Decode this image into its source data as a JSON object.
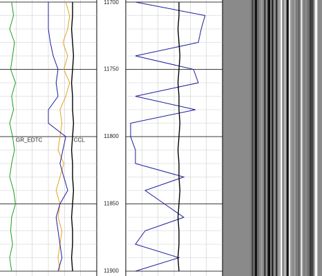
{
  "chart_data": {
    "type": "well-log",
    "ylim": [
      11700,
      11900
    ],
    "yticks": [
      11700,
      11750,
      11800,
      11850,
      11900
    ],
    "xlim": [
      0,
      1
    ],
    "depths": [
      11700,
      11710,
      11720,
      11730,
      11740,
      11750,
      11760,
      11770,
      11780,
      11790,
      11800,
      11810,
      11820,
      11830,
      11840,
      11850,
      11860,
      11870,
      11880,
      11890,
      11900
    ],
    "grid": true,
    "series": [
      {
        "name": "GR_EDTC",
        "color": "#1a9e1a",
        "track": 1,
        "values": [
          0.12,
          0.14,
          0.1,
          0.15,
          0.13,
          0.11,
          0.16,
          0.12,
          0.14,
          0.1,
          0.13,
          0.15,
          0.12,
          0.1,
          0.14,
          0.16,
          0.12,
          0.11,
          0.13,
          0.1,
          0.12
        ]
      },
      {
        "color": "#e6a020",
        "track": 1,
        "values": [
          0.68,
          0.72,
          0.7,
          0.65,
          0.7,
          0.66,
          0.72,
          0.68,
          0.62,
          0.64,
          0.62,
          0.6,
          0.66,
          0.62,
          0.58,
          0.62,
          0.6,
          0.64,
          0.62,
          0.6,
          0.62
        ]
      },
      {
        "color": "#1a1a9e",
        "track": 1,
        "values": [
          0.5,
          0.5,
          0.5,
          0.52,
          0.55,
          0.6,
          0.58,
          0.6,
          0.5,
          0.5,
          0.68,
          0.65,
          0.62,
          0.66,
          0.7,
          0.62,
          0.58,
          0.6,
          0.62,
          0.64,
          0.6
        ]
      },
      {
        "name": "CCL",
        "color": "#000000",
        "track": 1,
        "values": [
          0.75,
          0.75,
          0.74,
          0.75,
          0.76,
          0.75,
          0.74,
          0.75,
          0.75,
          0.76,
          0.75,
          0.74,
          0.75,
          0.75,
          0.76,
          0.75,
          0.74,
          0.75,
          0.75,
          0.74,
          0.75
        ]
      },
      {
        "color": "#1a1a9e",
        "track": 2,
        "values": [
          0.1,
          0.82,
          0.78,
          0.75,
          0.1,
          0.7,
          0.75,
          0.1,
          0.72,
          0.05,
          0.05,
          0.1,
          0.1,
          0.6,
          0.2,
          0.4,
          0.6,
          0.2,
          0.1,
          0.55,
          0.1
        ]
      },
      {
        "color": "#000000",
        "track": 2,
        "values": [
          0.55,
          0.55,
          0.54,
          0.55,
          0.56,
          0.55,
          0.54,
          0.55,
          0.55,
          0.56,
          0.55,
          0.54,
          0.55,
          0.55,
          0.56,
          0.55,
          0.54,
          0.55,
          0.55,
          0.54,
          0.55
        ]
      }
    ]
  }
}
